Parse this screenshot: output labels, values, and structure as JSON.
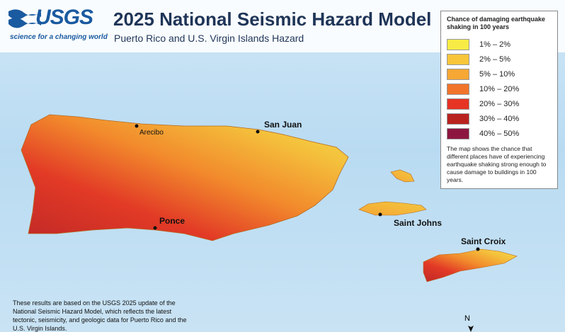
{
  "header": {
    "logo": "USGS",
    "tagline": "science for a changing world",
    "title": "2025 National Seismic Hazard Model",
    "subtitle": "Puerto Rico and U.S. Virgin Islands Hazard"
  },
  "legend": {
    "title": "Chance of damaging earthquake shaking in 100 years",
    "items": [
      {
        "label": "1% – 2%",
        "color": "#f7ec45"
      },
      {
        "label": "2% – 5%",
        "color": "#f8c63b"
      },
      {
        "label": "5% – 10%",
        "color": "#f6a734"
      },
      {
        "label": "10% – 20%",
        "color": "#f1742a"
      },
      {
        "label": "20% – 30%",
        "color": "#e63324"
      },
      {
        "label": "30% – 40%",
        "color": "#b8221f"
      },
      {
        "label": "40% – 50%",
        "color": "#8d1640"
      }
    ],
    "note": "The map shows the chance that different places have of experiencing earthquake shaking strong enough to cause damage to buildings in 100 years."
  },
  "places": {
    "arecibo": "Arecibo",
    "san_juan": "San Juan",
    "ponce": "Ponce",
    "saint_johns": "Saint Johns",
    "saint_croix": "Saint Croix"
  },
  "footnote": "These results are based on the USGS 2025 update of the National Seismic Hazard Model, which reflects the latest tectonic, seismicity, and geologic data for Puerto Rico and the U.S. Virgin Islands.",
  "north": "N"
}
